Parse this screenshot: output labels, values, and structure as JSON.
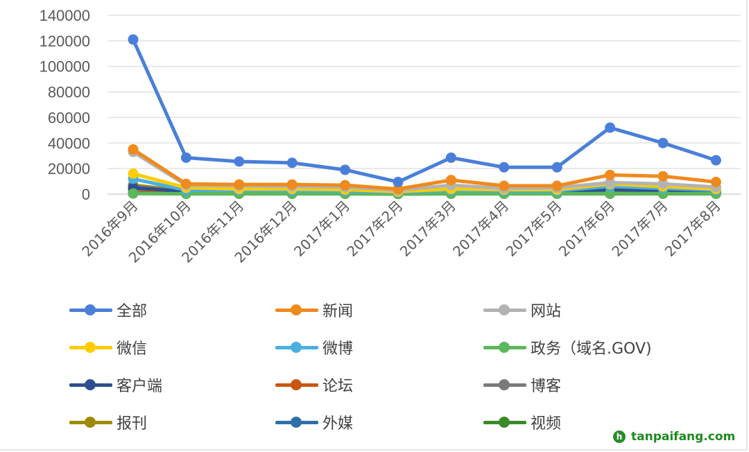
{
  "chart_data": {
    "type": "line",
    "categories": [
      "2016年9月",
      "2016年10月",
      "2016年11月",
      "2016年12月",
      "2017年1月",
      "2017年2月",
      "2017年3月",
      "2017年4月",
      "2017年5月",
      "2017年6月",
      "2017年7月",
      "2017年8月"
    ],
    "ylim": [
      0,
      140000
    ],
    "yticks": [
      0,
      20000,
      40000,
      60000,
      80000,
      100000,
      120000,
      140000
    ],
    "grid": true,
    "legend": "bottom",
    "series": [
      {
        "name": "全部",
        "color": "#4a7fd9",
        "values": [
          121000,
          28500,
          25500,
          24500,
          19000,
          9500,
          28500,
          21000,
          21000,
          52000,
          40000,
          26500
        ]
      },
      {
        "name": "新闻",
        "color": "#f08a1c",
        "values": [
          35000,
          8000,
          7500,
          7500,
          7000,
          4000,
          11000,
          6500,
          6500,
          15000,
          14000,
          9500
        ]
      },
      {
        "name": "网站",
        "color": "#b3b3b3",
        "values": [
          33000,
          7000,
          6500,
          6000,
          5500,
          3000,
          7000,
          4500,
          5000,
          9000,
          8000,
          5500
        ]
      },
      {
        "name": "微信",
        "color": "#ffcc00",
        "values": [
          16000,
          5000,
          4000,
          4000,
          3500,
          2000,
          4000,
          3500,
          3500,
          8000,
          6000,
          4000
        ]
      },
      {
        "name": "微博",
        "color": "#4aaee0",
        "values": [
          12000,
          3000,
          3000,
          2800,
          2500,
          1500,
          3000,
          2500,
          2500,
          6000,
          4500,
          3000
        ]
      },
      {
        "name": "政务（域名.GOV)",
        "color": "#5cb85c",
        "values": [
          500,
          300,
          300,
          300,
          300,
          200,
          300,
          300,
          300,
          500,
          400,
          300
        ]
      },
      {
        "name": "客户端",
        "color": "#2e4f8f",
        "values": [
          5000,
          2000,
          1800,
          1800,
          1500,
          1000,
          2000,
          1500,
          1500,
          3500,
          2500,
          2000
        ]
      },
      {
        "name": "论坛",
        "color": "#c8560f",
        "values": [
          4000,
          1500,
          1500,
          1400,
          1300,
          800,
          1500,
          1200,
          1200,
          2500,
          2000,
          1500
        ]
      },
      {
        "name": "博客",
        "color": "#7a7a7a",
        "values": [
          6000,
          2000,
          2000,
          1800,
          1700,
          1000,
          2000,
          1600,
          1600,
          4000,
          3000,
          2000
        ]
      },
      {
        "name": "报刊",
        "color": "#a08a00",
        "values": [
          7000,
          2500,
          2200,
          2200,
          2000,
          1200,
          2500,
          2000,
          2000,
          4500,
          3500,
          2500
        ]
      },
      {
        "name": "外媒",
        "color": "#2f6fa8",
        "values": [
          1000,
          500,
          500,
          500,
          500,
          300,
          500,
          500,
          500,
          800,
          700,
          500
        ]
      },
      {
        "name": "视频",
        "color": "#3a8a2a",
        "values": [
          500,
          200,
          200,
          200,
          200,
          100,
          200,
          200,
          200,
          300,
          300,
          200
        ]
      }
    ]
  },
  "watermark": {
    "text": "tanpaifang.com"
  }
}
